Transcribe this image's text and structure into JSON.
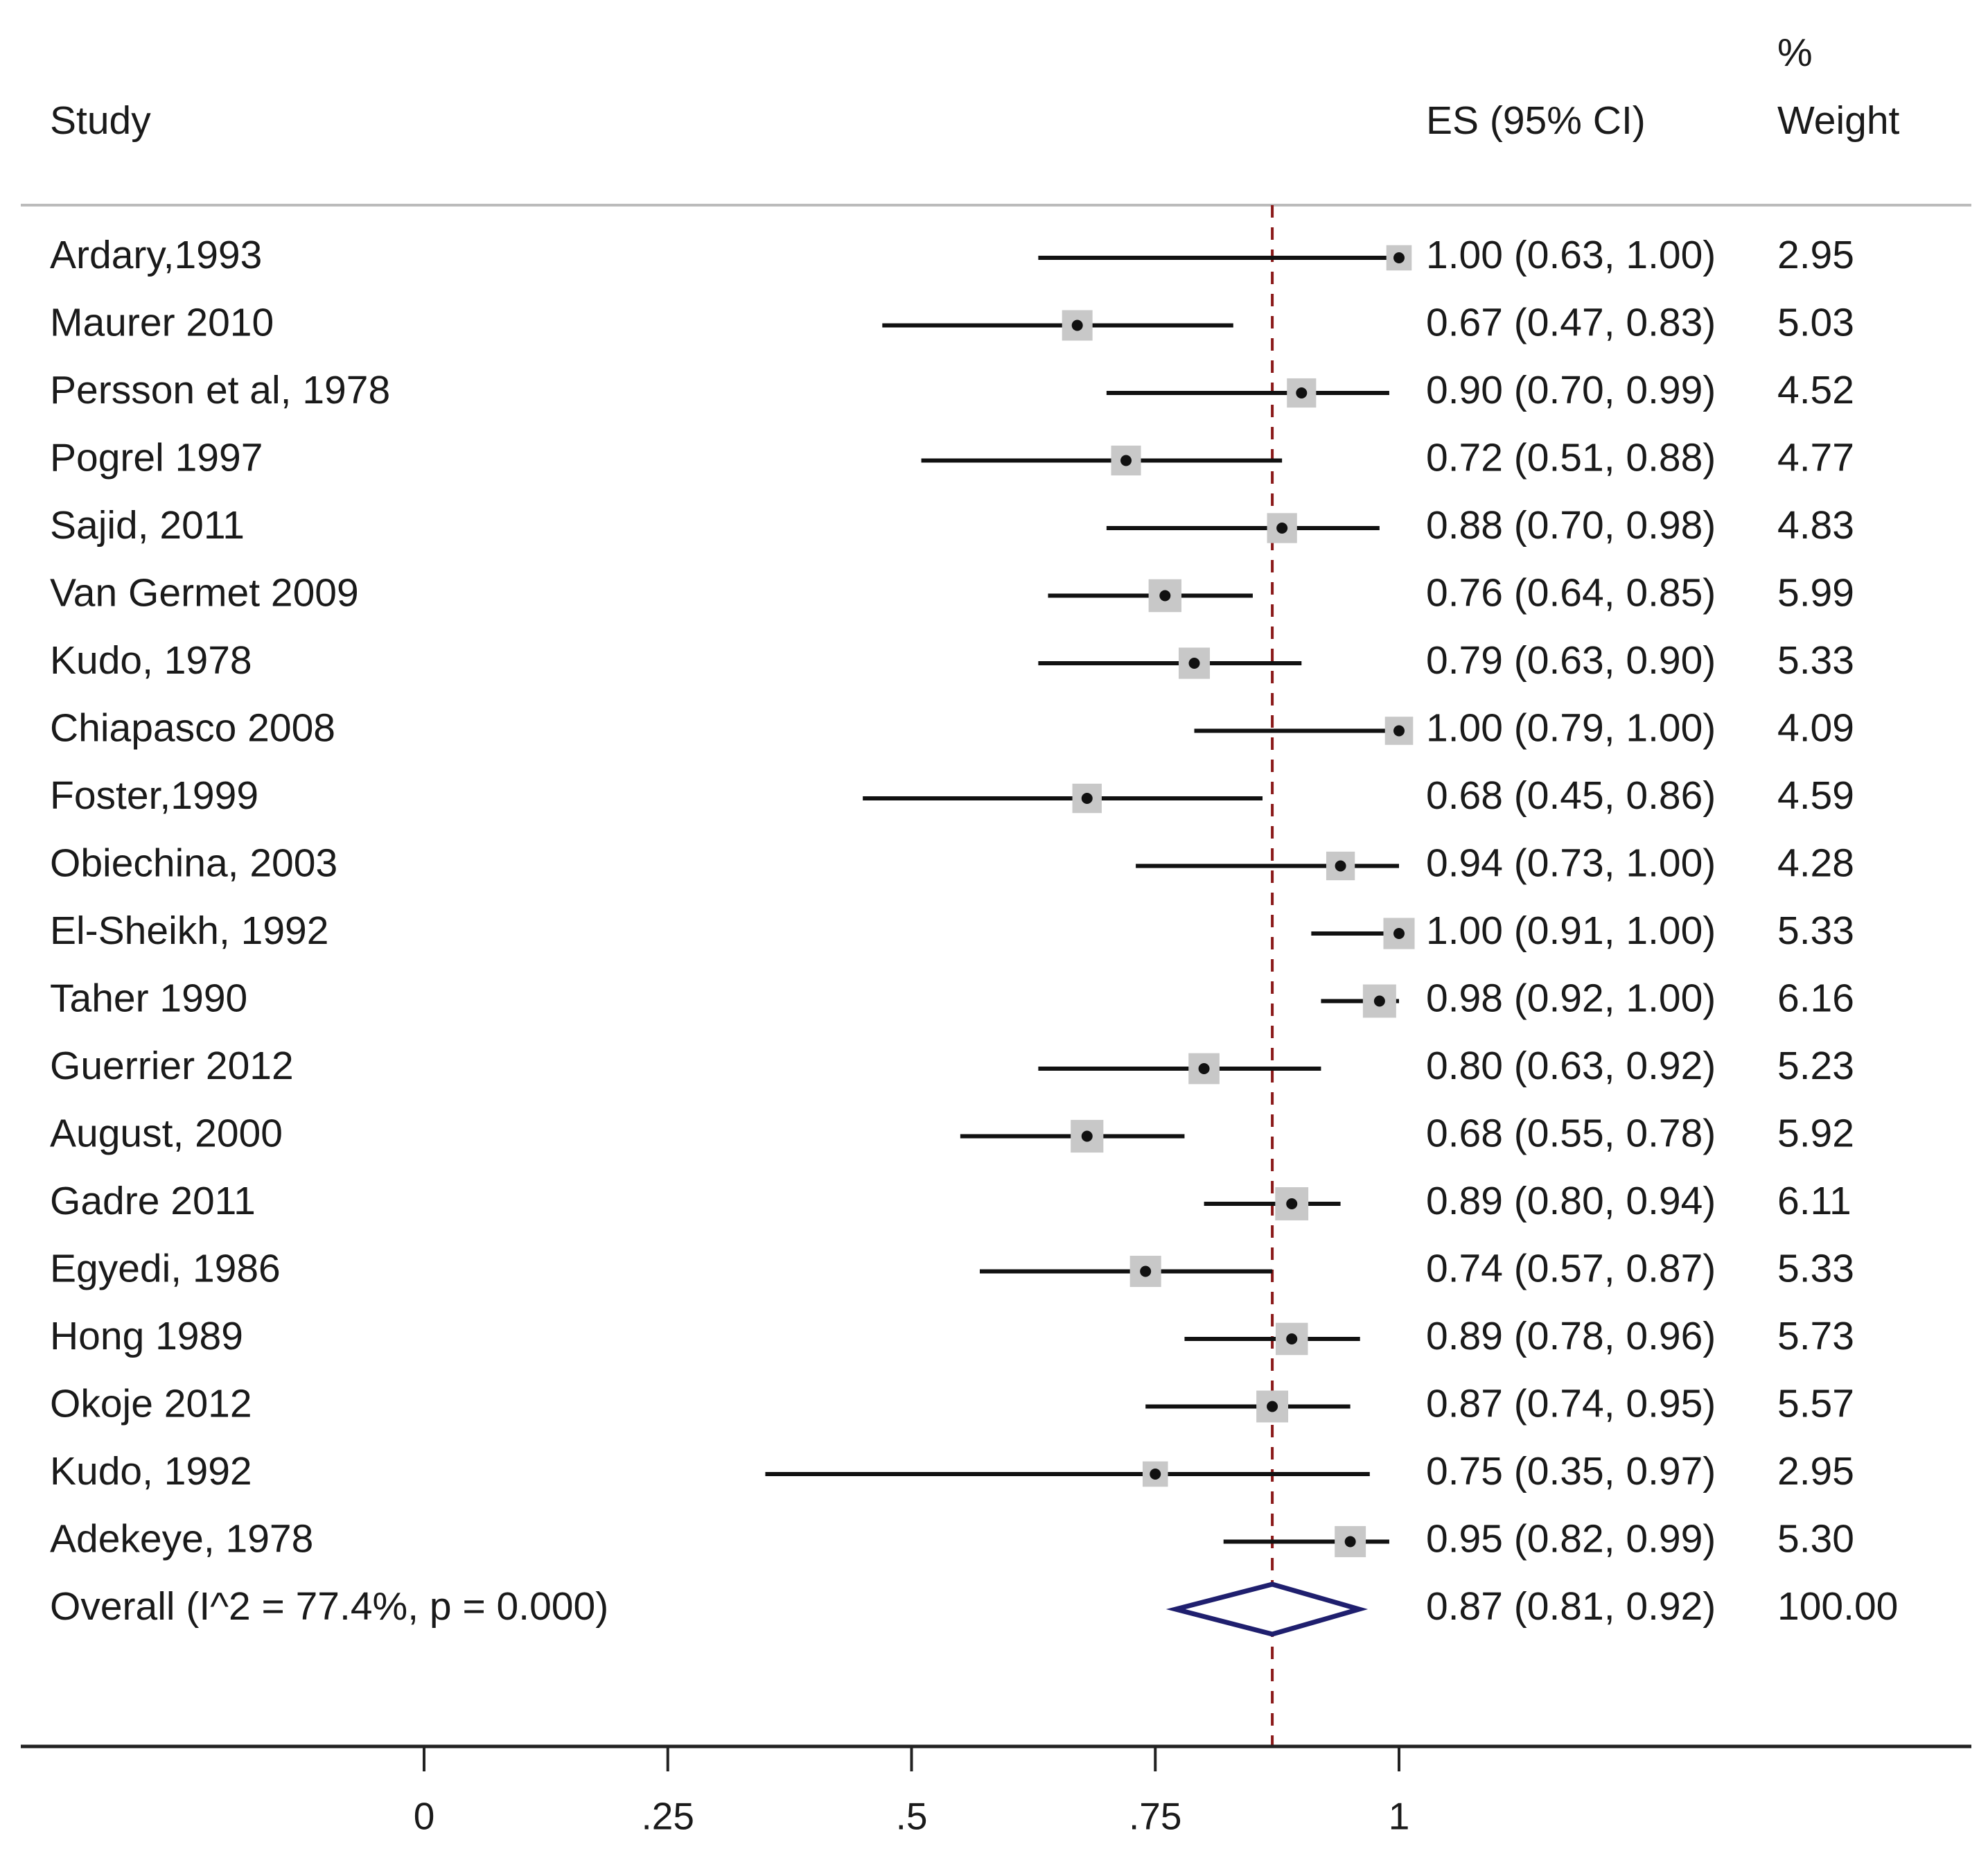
{
  "chart_data": {
    "type": "forest",
    "headers": {
      "study": "Study",
      "es": "ES (95% CI)",
      "weight_line1": "%",
      "weight_line2": "Weight"
    },
    "x_ticks": [
      0,
      0.25,
      0.5,
      0.75,
      1
    ],
    "x_tick_labels": [
      "0",
      ".25",
      ".5",
      ".75",
      "1"
    ],
    "xlim": [
      -0.43,
      1.6
    ],
    "reference_value": 0.87,
    "studies": [
      {
        "name": "Ardary,1993",
        "es": 1.0,
        "lo": 0.63,
        "hi": 1.0,
        "es_text": "1.00 (0.63, 1.00)",
        "weight": 2.95,
        "weight_text": "2.95"
      },
      {
        "name": "Maurer 2010",
        "es": 0.67,
        "lo": 0.47,
        "hi": 0.83,
        "es_text": "0.67 (0.47, 0.83)",
        "weight": 5.03,
        "weight_text": "5.03"
      },
      {
        "name": "Persson et al, 1978",
        "es": 0.9,
        "lo": 0.7,
        "hi": 0.99,
        "es_text": "0.90 (0.70, 0.99)",
        "weight": 4.52,
        "weight_text": "4.52"
      },
      {
        "name": "Pogrel 1997",
        "es": 0.72,
        "lo": 0.51,
        "hi": 0.88,
        "es_text": "0.72 (0.51, 0.88)",
        "weight": 4.77,
        "weight_text": "4.77"
      },
      {
        "name": "Sajid, 2011",
        "es": 0.88,
        "lo": 0.7,
        "hi": 0.98,
        "es_text": "0.88 (0.70, 0.98)",
        "weight": 4.83,
        "weight_text": "4.83"
      },
      {
        "name": "Van Germet 2009",
        "es": 0.76,
        "lo": 0.64,
        "hi": 0.85,
        "es_text": "0.76 (0.64, 0.85)",
        "weight": 5.99,
        "weight_text": "5.99"
      },
      {
        "name": "Kudo, 1978",
        "es": 0.79,
        "lo": 0.63,
        "hi": 0.9,
        "es_text": "0.79 (0.63, 0.90)",
        "weight": 5.33,
        "weight_text": "5.33"
      },
      {
        "name": "Chiapasco 2008",
        "es": 1.0,
        "lo": 0.79,
        "hi": 1.0,
        "es_text": "1.00 (0.79, 1.00)",
        "weight": 4.09,
        "weight_text": "4.09"
      },
      {
        "name": "Foster,1999",
        "es": 0.68,
        "lo": 0.45,
        "hi": 0.86,
        "es_text": "0.68 (0.45, 0.86)",
        "weight": 4.59,
        "weight_text": "4.59"
      },
      {
        "name": "Obiechina, 2003",
        "es": 0.94,
        "lo": 0.73,
        "hi": 1.0,
        "es_text": "0.94 (0.73, 1.00)",
        "weight": 4.28,
        "weight_text": "4.28"
      },
      {
        "name": "El-Sheikh, 1992",
        "es": 1.0,
        "lo": 0.91,
        "hi": 1.0,
        "es_text": "1.00 (0.91, 1.00)",
        "weight": 5.33,
        "weight_text": "5.33"
      },
      {
        "name": "Taher 1990",
        "es": 0.98,
        "lo": 0.92,
        "hi": 1.0,
        "es_text": "0.98 (0.92, 1.00)",
        "weight": 6.16,
        "weight_text": "6.16"
      },
      {
        "name": "Guerrier 2012",
        "es": 0.8,
        "lo": 0.63,
        "hi": 0.92,
        "es_text": "0.80 (0.63, 0.92)",
        "weight": 5.23,
        "weight_text": "5.23"
      },
      {
        "name": "August, 2000",
        "es": 0.68,
        "lo": 0.55,
        "hi": 0.78,
        "es_text": "0.68 (0.55, 0.78)",
        "weight": 5.92,
        "weight_text": "5.92"
      },
      {
        "name": "Gadre 2011",
        "es": 0.89,
        "lo": 0.8,
        "hi": 0.94,
        "es_text": "0.89 (0.80, 0.94)",
        "weight": 6.11,
        "weight_text": "6.11"
      },
      {
        "name": "Egyedi, 1986",
        "es": 0.74,
        "lo": 0.57,
        "hi": 0.87,
        "es_text": "0.74 (0.57, 0.87)",
        "weight": 5.33,
        "weight_text": "5.33"
      },
      {
        "name": "Hong 1989",
        "es": 0.89,
        "lo": 0.78,
        "hi": 0.96,
        "es_text": "0.89 (0.78, 0.96)",
        "weight": 5.73,
        "weight_text": "5.73"
      },
      {
        "name": "Okoje 2012",
        "es": 0.87,
        "lo": 0.74,
        "hi": 0.95,
        "es_text": "0.87 (0.74, 0.95)",
        "weight": 5.57,
        "weight_text": "5.57"
      },
      {
        "name": "Kudo, 1992",
        "es": 0.75,
        "lo": 0.35,
        "hi": 0.97,
        "es_text": "0.75 (0.35, 0.97)",
        "weight": 2.95,
        "weight_text": "2.95"
      },
      {
        "name": "Adekeye, 1978",
        "es": 0.95,
        "lo": 0.82,
        "hi": 0.99,
        "es_text": "0.95 (0.82, 0.99)",
        "weight": 5.3,
        "weight_text": "5.30"
      }
    ],
    "overall": {
      "name": "Overall  (I^2 = 77.4%, p = 0.000)",
      "es": 0.87,
      "lo": 0.81,
      "hi": 0.92,
      "es_text": "0.87 (0.81, 0.92)",
      "weight": 100.0,
      "weight_text": "100.00"
    },
    "colors": {
      "text": "#1a1a1a",
      "ci_line": "#111111",
      "weight_box": "#c8c8c8",
      "point": "#111111",
      "reference_line": "#8b1a1a",
      "overall_diamond": "#1f1f6e",
      "axis": "#222222",
      "divider": "#bbbbbb"
    }
  }
}
